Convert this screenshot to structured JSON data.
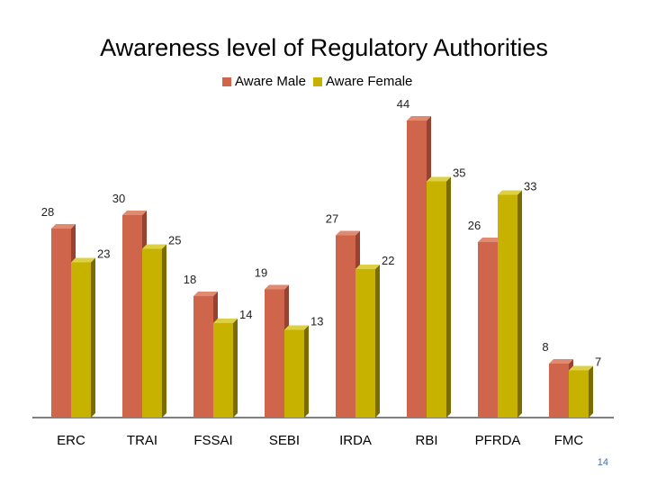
{
  "chart_data": {
    "type": "bar",
    "title": "Awareness level of Regulatory Authorities",
    "categories": [
      "ERC",
      "TRAI",
      "FSSAI",
      "SEBI",
      "IRDA",
      "RBI",
      "PFRDA",
      "FMC"
    ],
    "series": [
      {
        "name": "Aware Male",
        "values": [
          28,
          30,
          18,
          19,
          27,
          44,
          26,
          8
        ]
      },
      {
        "name": "Aware Female",
        "values": [
          23,
          25,
          14,
          13,
          22,
          35,
          33,
          7
        ]
      }
    ],
    "xlabel": "",
    "ylabel": "",
    "ylim": [
      0,
      50
    ],
    "grid": false,
    "legend_position": "top-center"
  },
  "colors": {
    "male": "#cf654a",
    "male_dark": "#9a4230",
    "female": "#c8b200",
    "female_dark": "#7a6c00"
  },
  "page_number": "14"
}
